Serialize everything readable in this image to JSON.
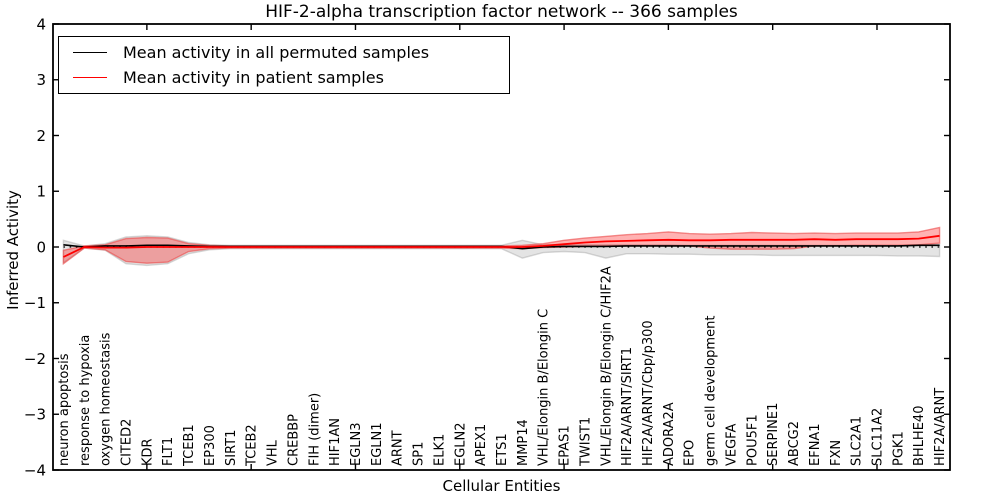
{
  "figure": {
    "title": "HIF-2-alpha transcription factor network -- 366 samples",
    "xlabel": "Cellular Entities",
    "ylabel": "Inferred Activity"
  },
  "legend": {
    "entries": [
      {
        "label": "Mean activity in all permuted samples",
        "color": "#000000"
      },
      {
        "label": "Mean activity in patient samples",
        "color": "#ff0000"
      }
    ]
  },
  "chart_data": {
    "type": "line",
    "title": "HIF-2-alpha transcription factor network -- 366 samples",
    "xlabel": "Cellular Entities",
    "ylabel": "Inferred Activity",
    "ylim": [
      -4,
      4
    ],
    "yticks": [
      -4,
      -3,
      -2,
      -1,
      0,
      1,
      2,
      3,
      4
    ],
    "x_major_tick_indices": [
      4,
      9,
      14,
      19,
      24,
      29,
      34,
      39
    ],
    "grid": false,
    "legend_position": "upper left",
    "zero_reference_line": {
      "style": "dotted",
      "color": "#000000",
      "y": 0
    },
    "categories": [
      "neuron apoptosis",
      "response to hypoxia",
      "oxygen homeostasis",
      "CITED2",
      "KDR",
      "FLT1",
      "TCEB1",
      "EP300",
      "SIRT1",
      "TCEB2",
      "VHL",
      "CREBBP",
      "FIH (dimer)",
      "HIF1AN",
      "EGLN3",
      "EGLN1",
      "ARNT",
      "SP1",
      "ELK1",
      "EGLN2",
      "APEX1",
      "ETS1",
      "MMP14",
      "VHL/Elongin B/Elongin C",
      "EPAS1",
      "TWIST1",
      "VHL/Elongin B/Elongin C/HIF2A",
      "HIF2A/ARNT/SIRT1",
      "HIF2A/ARNT/Cbp/p300",
      "ADORA2A",
      "EPO",
      "germ cell development",
      "VEGFA",
      "POU5F1",
      "SERPINE1",
      "ABCG2",
      "EFNA1",
      "FXN",
      "SLC2A1",
      "SLC11A2",
      "PGK1",
      "BHLHE40",
      "HIF2A/ARNT"
    ],
    "series": [
      {
        "name": "Mean activity in all permuted samples",
        "role": "line",
        "color": "#000000",
        "width": 1.6,
        "values": [
          0.04,
          0,
          0.02,
          0.02,
          0.03,
          0.03,
          0.02,
          0.01,
          0.01,
          0.01,
          0.01,
          0.01,
          0.01,
          0.01,
          0.01,
          0.01,
          0.01,
          0.01,
          0.01,
          0.01,
          0.01,
          0.01,
          -0.03,
          0,
          0.01,
          0.01,
          0.01,
          0.02,
          0.02,
          0.02,
          0.02,
          0.02,
          0.02,
          0.02,
          0.02,
          0.02,
          0.02,
          0.02,
          0.02,
          0.02,
          0.02,
          0.03,
          0.03
        ]
      },
      {
        "name": "Mean activity in patient samples",
        "role": "line",
        "color": "#ff0000",
        "width": 1.8,
        "values": [
          -0.18,
          0,
          -0.01,
          -0.01,
          0,
          0,
          0,
          0,
          0,
          0,
          0,
          0,
          0,
          0,
          0,
          0,
          0,
          0,
          0,
          0,
          0,
          0,
          0,
          0.02,
          0.05,
          0.08,
          0.1,
          0.11,
          0.12,
          0.13,
          0.12,
          0.12,
          0.13,
          0.13,
          0.13,
          0.13,
          0.14,
          0.13,
          0.14,
          0.14,
          0.14,
          0.15,
          0.2
        ]
      },
      {
        "name": "Permuted samples spread band",
        "role": "band",
        "fill": "rgba(130,130,130,0.22)",
        "edge": "rgba(130,130,130,0.30)",
        "upper": [
          0.12,
          0.02,
          0.06,
          0.18,
          0.2,
          0.18,
          0.08,
          0.04,
          0.03,
          0.03,
          0.03,
          0.03,
          0.03,
          0.03,
          0.03,
          0.03,
          0.03,
          0.03,
          0.03,
          0.03,
          0.03,
          0.03,
          0.12,
          0.04,
          0.04,
          0.04,
          0.04,
          0.04,
          0.04,
          0.04,
          0.03,
          0.03,
          0.03,
          0.03,
          0.03,
          0.03,
          0.03,
          0.03,
          0.03,
          0.03,
          0.03,
          0.04,
          0.05
        ],
        "lower": [
          -0.28,
          -0.02,
          -0.06,
          -0.3,
          -0.33,
          -0.3,
          -0.12,
          -0.05,
          -0.03,
          -0.03,
          -0.03,
          -0.03,
          -0.03,
          -0.03,
          -0.03,
          -0.03,
          -0.03,
          -0.03,
          -0.03,
          -0.03,
          -0.03,
          -0.03,
          -0.2,
          -0.1,
          -0.08,
          -0.1,
          -0.2,
          -0.12,
          -0.12,
          -0.13,
          -0.13,
          -0.14,
          -0.14,
          -0.14,
          -0.15,
          -0.15,
          -0.15,
          -0.15,
          -0.15,
          -0.15,
          -0.16,
          -0.16,
          -0.17
        ]
      },
      {
        "name": "Patient samples spread band",
        "role": "band",
        "fill": "rgba(255,0,0,0.30)",
        "edge": "rgba(235,70,70,0.60)",
        "upper": [
          -0.06,
          0.02,
          0.04,
          0.15,
          0.17,
          0.16,
          0.06,
          0.03,
          0.02,
          0.02,
          0.02,
          0.02,
          0.02,
          0.02,
          0.02,
          0.02,
          0.02,
          0.02,
          0.02,
          0.02,
          0.02,
          0.02,
          0.03,
          0.06,
          0.12,
          0.16,
          0.19,
          0.22,
          0.24,
          0.27,
          0.24,
          0.23,
          0.24,
          0.26,
          0.25,
          0.24,
          0.25,
          0.24,
          0.25,
          0.25,
          0.25,
          0.27,
          0.35
        ],
        "lower": [
          -0.3,
          -0.02,
          -0.05,
          -0.26,
          -0.29,
          -0.27,
          -0.08,
          -0.03,
          -0.02,
          -0.02,
          -0.02,
          -0.02,
          -0.02,
          -0.02,
          -0.02,
          -0.02,
          -0.02,
          -0.02,
          -0.02,
          -0.02,
          -0.02,
          -0.02,
          -0.03,
          -0.01,
          0,
          0.01,
          0.02,
          0.02,
          0.02,
          0.02,
          0.02,
          -0.02,
          -0.04,
          -0.04,
          -0.04,
          -0.03,
          0.02,
          0.02,
          0.03,
          0.03,
          0.03,
          0.04,
          0.07
        ]
      }
    ]
  }
}
